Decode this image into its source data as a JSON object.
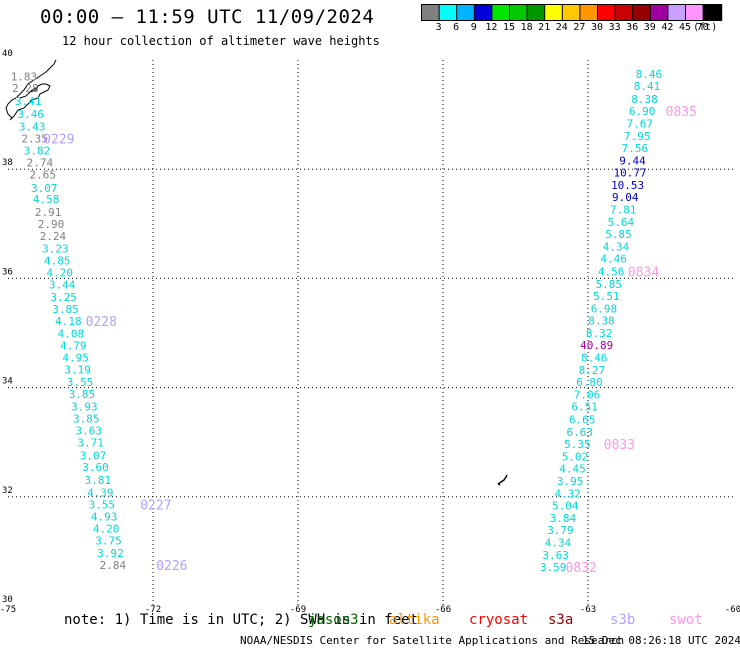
{
  "header": {
    "title": "00:00 – 11:59 UTC 11/09/2024",
    "subtitle": "12 hour collection of altimeter wave heights"
  },
  "legend": {
    "unit": "(ft)",
    "bins": [
      {
        "label": "3",
        "color": "#808080"
      },
      {
        "label": "6",
        "color": "#00ffff"
      },
      {
        "label": "9",
        "color": "#00b4ff"
      },
      {
        "label": "12",
        "color": "#0000dc"
      },
      {
        "label": "15",
        "color": "#00e600"
      },
      {
        "label": "18",
        "color": "#00c800"
      },
      {
        "label": "21",
        "color": "#009600"
      },
      {
        "label": "24",
        "color": "#ffff00"
      },
      {
        "label": "27",
        "color": "#ffc800"
      },
      {
        "label": "30",
        "color": "#ff9600"
      },
      {
        "label": "33",
        "color": "#ff0000"
      },
      {
        "label": "36",
        "color": "#c80000"
      },
      {
        "label": "39",
        "color": "#960000"
      },
      {
        "label": "42",
        "color": "#a000a0"
      },
      {
        "label": "45",
        "color": "#c8a0ff"
      },
      {
        "label": "70",
        "color": "#ff96ff"
      },
      {
        "label": "",
        "color": "#000000"
      }
    ]
  },
  "map": {
    "lon_range": [
      -75,
      -60
    ],
    "lat_range": [
      30,
      40
    ],
    "lon_ticks": [
      {
        "value": -75,
        "label": "-75"
      },
      {
        "value": -72,
        "label": "-72"
      },
      {
        "value": -69,
        "label": "-69"
      },
      {
        "value": -66,
        "label": "-66"
      },
      {
        "value": -63,
        "label": "-63"
      },
      {
        "value": -60,
        "label": "-60"
      }
    ],
    "lat_ticks": [
      {
        "value": 30,
        "label": "30"
      },
      {
        "value": 32,
        "label": "32"
      },
      {
        "value": 34,
        "label": "34"
      },
      {
        "value": 36,
        "label": "36"
      },
      {
        "value": 38,
        "label": "38"
      },
      {
        "value": 40,
        "label": "40"
      }
    ],
    "tracks": [
      {
        "obs": [
          {
            "lat": 39.7,
            "lon": -74.67,
            "v": "1.83",
            "c": "#808080"
          },
          {
            "lat": 39.49,
            "lon": -74.64,
            "v": "2.28",
            "c": "#808080"
          },
          {
            "lat": 39.25,
            "lon": -74.58,
            "v": "3.41",
            "c": "#00d8d8"
          },
          {
            "lat": 39.01,
            "lon": -74.53,
            "v": "3.46",
            "c": "#00d8d8"
          },
          {
            "lat": 38.78,
            "lon": -74.5,
            "v": "3.43",
            "c": "#00d8d8"
          },
          {
            "lat": 38.56,
            "lon": -74.45,
            "v": "2.35",
            "c": "#808080"
          },
          {
            "lat": 38.34,
            "lon": -74.4,
            "v": "3.82",
            "c": "#00d8d8"
          },
          {
            "lat": 38.12,
            "lon": -74.34,
            "v": "2.74",
            "c": "#808080"
          },
          {
            "lat": 37.9,
            "lon": -74.28,
            "v": "2.65",
            "c": "#808080"
          },
          {
            "lat": 37.66,
            "lon": -74.25,
            "v": "3.07",
            "c": "#00d8d8"
          },
          {
            "lat": 37.45,
            "lon": -74.21,
            "v": "4.58",
            "c": "#00d8d8"
          },
          {
            "lat": 37.22,
            "lon": -74.17,
            "v": "2.91",
            "c": "#808080"
          },
          {
            "lat": 37.0,
            "lon": -74.11,
            "v": "2.90",
            "c": "#808080"
          },
          {
            "lat": 36.78,
            "lon": -74.07,
            "v": "2.24",
            "c": "#808080"
          },
          {
            "lat": 36.55,
            "lon": -74.02,
            "v": "3.23",
            "c": "#00d8d8"
          },
          {
            "lat": 36.33,
            "lon": -73.98,
            "v": "4.85",
            "c": "#00d8d8"
          },
          {
            "lat": 36.11,
            "lon": -73.93,
            "v": "4.20",
            "c": "#00d8d8"
          },
          {
            "lat": 35.89,
            "lon": -73.88,
            "v": "3.44",
            "c": "#00d8d8"
          },
          {
            "lat": 35.66,
            "lon": -73.85,
            "v": "3.25",
            "c": "#00d8d8"
          },
          {
            "lat": 35.44,
            "lon": -73.81,
            "v": "3.85",
            "c": "#00d8d8"
          },
          {
            "lat": 35.22,
            "lon": -73.75,
            "v": "4.18",
            "c": "#00d8d8"
          },
          {
            "lat": 34.99,
            "lon": -73.7,
            "v": "4.08",
            "c": "#00d8d8"
          },
          {
            "lat": 34.77,
            "lon": -73.65,
            "v": "4.79",
            "c": "#00d8d8"
          },
          {
            "lat": 34.55,
            "lon": -73.6,
            "v": "4.95",
            "c": "#00d8d8"
          },
          {
            "lat": 34.33,
            "lon": -73.56,
            "v": "3.19",
            "c": "#00d8d8"
          },
          {
            "lat": 34.1,
            "lon": -73.51,
            "v": "3.55",
            "c": "#00d8d8"
          },
          {
            "lat": 33.88,
            "lon": -73.47,
            "v": "3.85",
            "c": "#00d8d8"
          },
          {
            "lat": 33.65,
            "lon": -73.42,
            "v": "3.93",
            "c": "#00d8d8"
          },
          {
            "lat": 33.43,
            "lon": -73.38,
            "v": "3.85",
            "c": "#00d8d8"
          },
          {
            "lat": 33.21,
            "lon": -73.33,
            "v": "3.63",
            "c": "#00d8d8"
          },
          {
            "lat": 32.99,
            "lon": -73.29,
            "v": "3.71",
            "c": "#00d8d8"
          },
          {
            "lat": 32.76,
            "lon": -73.24,
            "v": "3.07",
            "c": "#00d8d8"
          },
          {
            "lat": 32.55,
            "lon": -73.19,
            "v": "3.60",
            "c": "#00d8d8"
          },
          {
            "lat": 32.31,
            "lon": -73.14,
            "v": "3.81",
            "c": "#00d8d8"
          },
          {
            "lat": 32.08,
            "lon": -73.09,
            "v": "4.39",
            "c": "#00d8d8"
          },
          {
            "lat": 31.86,
            "lon": -73.06,
            "v": "3.55",
            "c": "#00d8d8"
          },
          {
            "lat": 31.64,
            "lon": -73.01,
            "v": "4.93",
            "c": "#00d8d8"
          },
          {
            "lat": 31.42,
            "lon": -72.97,
            "v": "4.20",
            "c": "#00d8d8"
          },
          {
            "lat": 31.2,
            "lon": -72.92,
            "v": "3.75",
            "c": "#00d8d8"
          },
          {
            "lat": 30.97,
            "lon": -72.88,
            "v": "3.92",
            "c": "#00d8d8"
          },
          {
            "lat": 30.75,
            "lon": -72.83,
            "v": "2.84",
            "c": "#808080"
          }
        ],
        "labels": [
          {
            "lat": 38.56,
            "lon": -73.95,
            "text": "0229"
          },
          {
            "lat": 35.22,
            "lon": -73.07,
            "text": "0228"
          },
          {
            "lat": 31.86,
            "lon": -71.94,
            "text": "0227"
          },
          {
            "lat": 30.75,
            "lon": -71.61,
            "text": "0226"
          }
        ],
        "label_color": "#b4a0ff"
      },
      {
        "obs": [
          {
            "lat": 39.74,
            "lon": -61.74,
            "v": "8.46",
            "c": "#00d8d8"
          },
          {
            "lat": 39.52,
            "lon": -61.78,
            "v": "8.41",
            "c": "#00d8d8"
          },
          {
            "lat": 39.29,
            "lon": -61.83,
            "v": "8.38",
            "c": "#00d8d8"
          },
          {
            "lat": 39.07,
            "lon": -61.88,
            "v": "6.90",
            "c": "#00d8d8"
          },
          {
            "lat": 38.84,
            "lon": -61.93,
            "v": "7.67",
            "c": "#00d8d8"
          },
          {
            "lat": 38.61,
            "lon": -61.98,
            "v": "7.95",
            "c": "#00d8d8"
          },
          {
            "lat": 38.39,
            "lon": -62.03,
            "v": "7.56",
            "c": "#00d8d8"
          },
          {
            "lat": 38.16,
            "lon": -62.08,
            "v": "9.44",
            "c": "#0000c8"
          },
          {
            "lat": 37.94,
            "lon": -62.13,
            "v": "10.77",
            "c": "#0000c8"
          },
          {
            "lat": 37.71,
            "lon": -62.18,
            "v": "10.53",
            "c": "#0000c8"
          },
          {
            "lat": 37.49,
            "lon": -62.23,
            "v": "9.04",
            "c": "#0000c8"
          },
          {
            "lat": 37.26,
            "lon": -62.27,
            "v": "7.81",
            "c": "#00d8d8"
          },
          {
            "lat": 37.03,
            "lon": -62.32,
            "v": "5.64",
            "c": "#00d8d8"
          },
          {
            "lat": 36.81,
            "lon": -62.37,
            "v": "5.85",
            "c": "#00d8d8"
          },
          {
            "lat": 36.58,
            "lon": -62.42,
            "v": "4.34",
            "c": "#00d8d8"
          },
          {
            "lat": 36.36,
            "lon": -62.47,
            "v": "4.46",
            "c": "#00d8d8"
          },
          {
            "lat": 36.13,
            "lon": -62.52,
            "v": "4.56",
            "c": "#00d8d8"
          },
          {
            "lat": 35.9,
            "lon": -62.57,
            "v": "5.85",
            "c": "#00d8d8"
          },
          {
            "lat": 35.68,
            "lon": -62.62,
            "v": "5.51",
            "c": "#00d8d8"
          },
          {
            "lat": 35.45,
            "lon": -62.67,
            "v": "6.98",
            "c": "#00d8d8"
          },
          {
            "lat": 35.23,
            "lon": -62.72,
            "v": "8.38",
            "c": "#00d8d8"
          },
          {
            "lat": 35.0,
            "lon": -62.77,
            "v": "8.32",
            "c": "#00d8d8"
          },
          {
            "lat": 34.78,
            "lon": -62.82,
            "v": "40.89",
            "c": "#a000a0"
          },
          {
            "lat": 34.55,
            "lon": -62.87,
            "v": "8.46",
            "c": "#00d8d8"
          },
          {
            "lat": 34.32,
            "lon": -62.92,
            "v": "8.27",
            "c": "#00d8d8"
          },
          {
            "lat": 34.1,
            "lon": -62.97,
            "v": "6.80",
            "c": "#00d8d8"
          },
          {
            "lat": 33.87,
            "lon": -63.02,
            "v": "7.06",
            "c": "#00d8d8"
          },
          {
            "lat": 33.65,
            "lon": -63.07,
            "v": "6.51",
            "c": "#00d8d8"
          },
          {
            "lat": 33.42,
            "lon": -63.12,
            "v": "6.65",
            "c": "#00d8d8"
          },
          {
            "lat": 33.19,
            "lon": -63.17,
            "v": "6.63",
            "c": "#00d8d8"
          },
          {
            "lat": 32.97,
            "lon": -63.22,
            "v": "5.35",
            "c": "#00d8d8"
          },
          {
            "lat": 32.74,
            "lon": -63.27,
            "v": "5.02",
            "c": "#00d8d8"
          },
          {
            "lat": 32.52,
            "lon": -63.32,
            "v": "4.45",
            "c": "#00d8d8"
          },
          {
            "lat": 32.29,
            "lon": -63.37,
            "v": "3.95",
            "c": "#00d8d8"
          },
          {
            "lat": 32.06,
            "lon": -63.42,
            "v": "4.32",
            "c": "#00d8d8"
          },
          {
            "lat": 31.84,
            "lon": -63.47,
            "v": "5.04",
            "c": "#00d8d8"
          },
          {
            "lat": 31.61,
            "lon": -63.52,
            "v": "3.84",
            "c": "#00d8d8"
          },
          {
            "lat": 31.39,
            "lon": -63.57,
            "v": "3.79",
            "c": "#00d8d8"
          },
          {
            "lat": 31.16,
            "lon": -63.62,
            "v": "4.34",
            "c": "#00d8d8"
          },
          {
            "lat": 30.93,
            "lon": -63.67,
            "v": "3.63",
            "c": "#00d8d8"
          },
          {
            "lat": 30.71,
            "lon": -63.72,
            "v": "3.59",
            "c": "#00d8d8"
          }
        ],
        "labels": [
          {
            "lat": 39.07,
            "lon": -61.07,
            "text": "0835"
          },
          {
            "lat": 36.13,
            "lon": -61.85,
            "text": "0834"
          },
          {
            "lat": 32.97,
            "lon": -62.35,
            "text": "0833"
          },
          {
            "lat": 30.71,
            "lon": -63.14,
            "text": "0832"
          }
        ],
        "label_color": "#ff96e6"
      }
    ]
  },
  "note": "note: 1) Time is in UTC; 2) SWH is in feet",
  "satellites": [
    {
      "name": "jason3",
      "color": "#006400"
    },
    {
      "name": "altika",
      "color": "#ff9600"
    },
    {
      "name": "cryosat",
      "color": "#ff0000"
    },
    {
      "name": "s3a",
      "color": "#960000"
    },
    {
      "name": "s3b",
      "color": "#b4a0ff"
    },
    {
      "name": "swot",
      "color": "#ff96e6"
    }
  ],
  "footer": {
    "credit": "NOAA/NESDIS Center for Satellite Applications and Research",
    "timestamp": "15 Dec 08:26:18 UTC 2024"
  }
}
